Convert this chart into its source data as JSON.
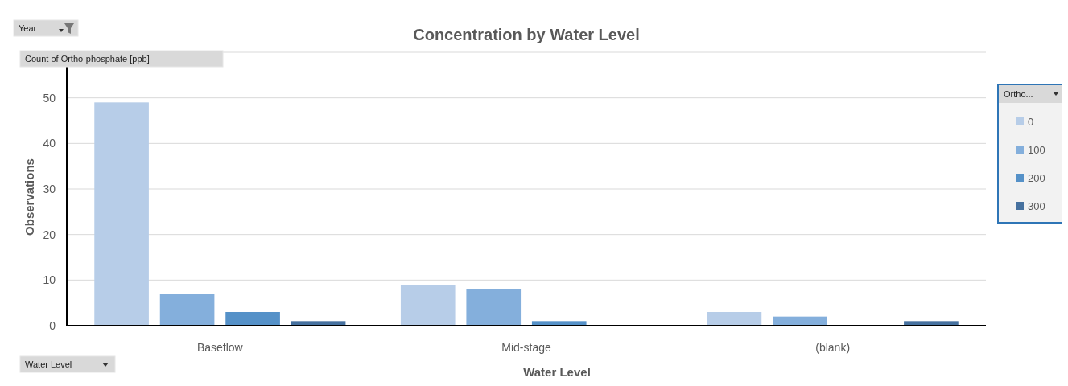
{
  "chart_data": {
    "type": "bar",
    "title": "Concentration by Water Level",
    "xlabel": "Water Level",
    "ylabel": "Observations",
    "legend_title": "Ortho...",
    "categories": [
      "Baseflow",
      "Mid-stage",
      "(blank)"
    ],
    "series": [
      {
        "name": "0",
        "color": "#b7cde8",
        "values": [
          49,
          9,
          3
        ]
      },
      {
        "name": "100",
        "color": "#84afdc",
        "values": [
          7,
          8,
          2
        ]
      },
      {
        "name": "200",
        "color": "#5591c8",
        "values": [
          3,
          1,
          null
        ]
      },
      {
        "name": "300",
        "color": "#46719f",
        "values": [
          1,
          null,
          1
        ]
      }
    ],
    "ylim": [
      0,
      60
    ],
    "yticks": [
      0,
      10,
      20,
      30,
      40,
      50,
      {
        "value": 60,
        "label": null
      }
    ],
    "grid": "y",
    "legend": "right",
    "annotations": [
      "Year",
      "Count of Ortho-phosphate [ppb]",
      "Water Level"
    ]
  }
}
